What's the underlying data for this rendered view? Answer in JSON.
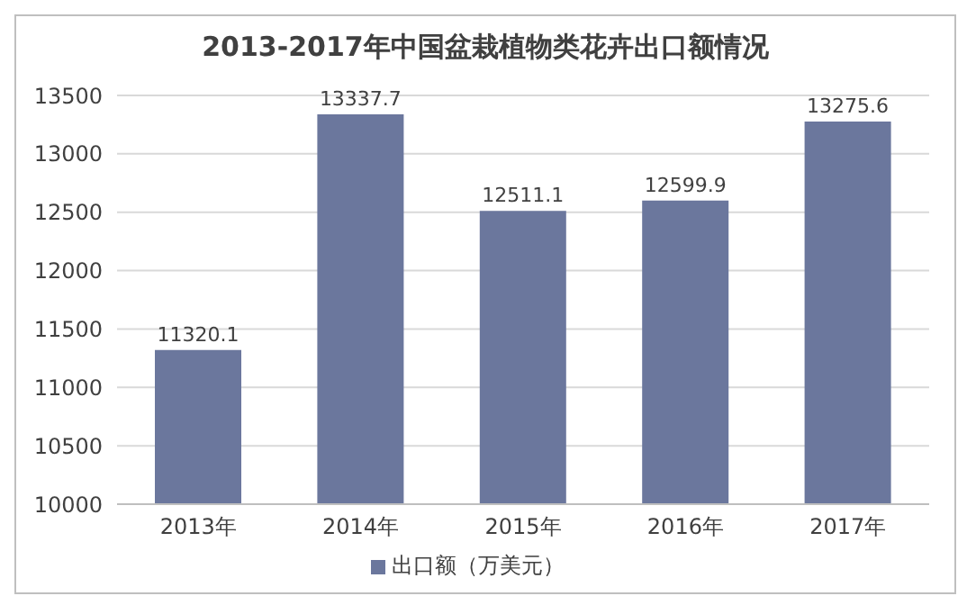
{
  "chart_data": {
    "type": "bar",
    "title": "2013-2017年中国盆栽植物类花卉出口额情况",
    "categories": [
      "2013年",
      "2014年",
      "2015年",
      "2016年",
      "2017年"
    ],
    "series": [
      {
        "name": "出口额（万美元）",
        "color": "#6b779d",
        "values": [
          11320.1,
          13337.7,
          12511.1,
          12599.9,
          13275.6
        ]
      }
    ],
    "ylim": [
      10000,
      13500
    ],
    "yticks": [
      10000,
      10500,
      11000,
      11500,
      12000,
      12500,
      13000,
      13500
    ],
    "grid": "y",
    "legend": "bottom",
    "data_labels": true
  }
}
